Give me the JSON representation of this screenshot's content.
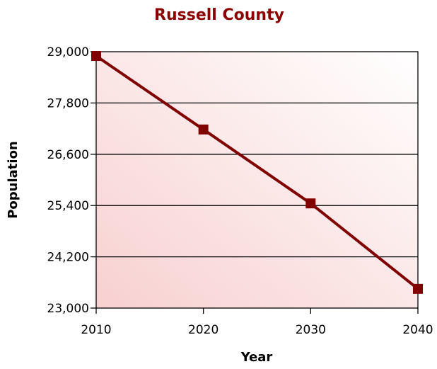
{
  "colors": {
    "title": "#8b0000",
    "series": "#800000",
    "marker": "#800000",
    "grid": "#000000",
    "plot_background_light": "#ffffff",
    "plot_background_dark": "#f8d0d0"
  },
  "chart_data": {
    "type": "line",
    "title": "Russell County",
    "xlabel": "Year",
    "ylabel": "Population",
    "x": [
      2010,
      2020,
      2030,
      2040
    ],
    "x_tick_labels": [
      "2010",
      "2020",
      "2030",
      "2040"
    ],
    "ylim": [
      23000,
      29000
    ],
    "y_tick_labels": [
      "23,000",
      "24,200",
      "25,400",
      "26,600",
      "27,800",
      "29,000"
    ],
    "series": [
      {
        "values": [
          28900,
          27180,
          25450,
          23450
        ]
      }
    ],
    "grid": true,
    "legend": "none"
  }
}
